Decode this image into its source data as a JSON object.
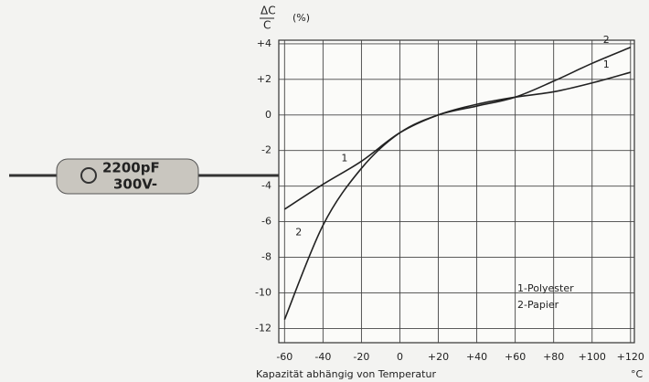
{
  "chart_data": {
    "type": "line",
    "ylabel_num": "ΔC",
    "ylabel_den": "C",
    "ylabel_unit": "(%)",
    "xlabel": "Kapazität abhängig von Temperatur",
    "xunit": "°C",
    "x": [
      -60,
      -40,
      -20,
      0,
      20,
      40,
      60,
      80,
      100,
      120
    ],
    "series": [
      {
        "name": "1",
        "color": "#222222",
        "values": [
          -5.3,
          -3.9,
          -2.6,
          -1.0,
          0,
          0.6,
          1.0,
          1.3,
          1.8,
          2.4
        ]
      },
      {
        "name": "2",
        "color": "#222222",
        "values": [
          -11.5,
          -6.2,
          -3.0,
          -1.0,
          0,
          0.5,
          1.0,
          1.9,
          2.9,
          3.8
        ]
      }
    ],
    "legend": [
      "1-Polyester",
      "2-Papier"
    ],
    "capacitor_label": [
      "2200pF",
      "300V-"
    ],
    "xlim": [
      -63,
      122
    ],
    "ylim": [
      -12.8,
      4.2
    ],
    "xticks": [
      -60,
      -40,
      -20,
      0,
      {
        "value": 20,
        "label": "+20"
      },
      {
        "value": 40,
        "label": "+40"
      },
      {
        "value": 60,
        "label": "+60"
      },
      {
        "value": 80,
        "label": "+80"
      },
      {
        "value": 100,
        "label": "+100"
      },
      {
        "value": 120,
        "label": "+120"
      }
    ],
    "yticks": [
      {
        "value": 4,
        "label": "+4"
      },
      {
        "value": 2,
        "label": "+2"
      },
      0,
      -2,
      -4,
      -6,
      -8,
      -10,
      -12
    ],
    "grid": true
  }
}
